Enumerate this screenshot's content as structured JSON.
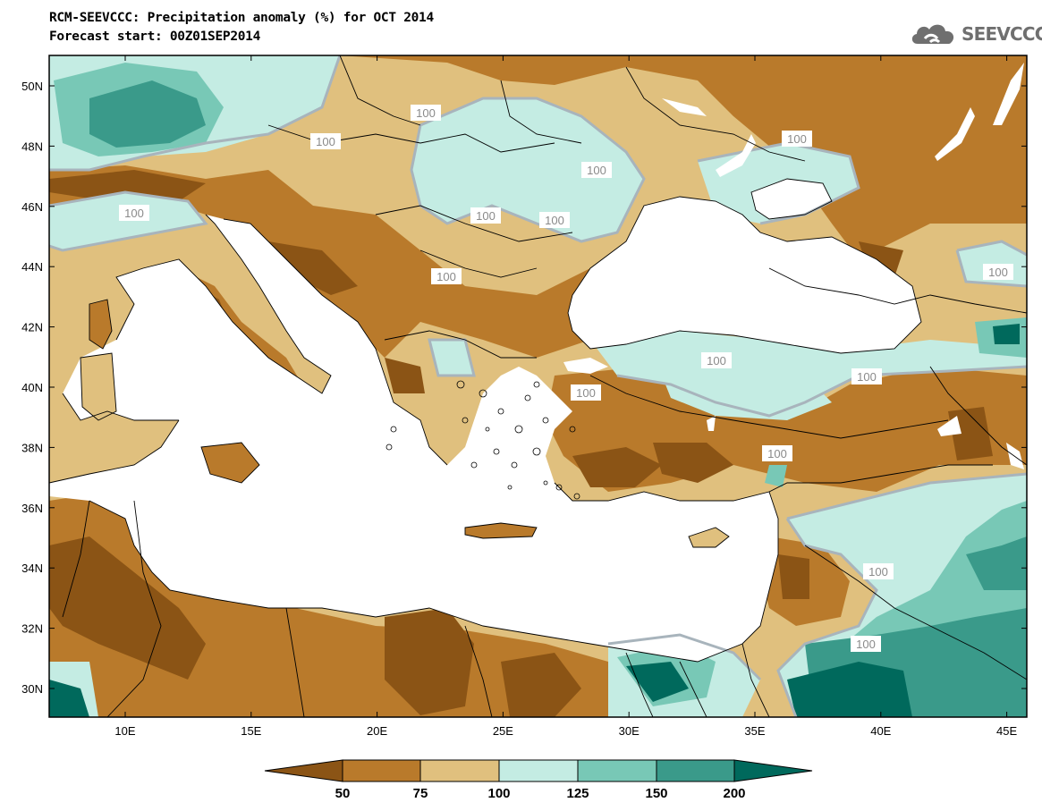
{
  "header": {
    "title": "RCM-SEEVCCC: Precipitation anomaly (%) for OCT 2014",
    "subtitle": "Forecast start: 00Z01SEP2014"
  },
  "logo": {
    "text": "SEEVCCC",
    "icon": "cloud-logo-icon"
  },
  "map": {
    "lon_ticks": [
      "10E",
      "15E",
      "20E",
      "25E",
      "30E",
      "35E",
      "40E",
      "45E"
    ],
    "lat_ticks": [
      "50N",
      "48N",
      "46N",
      "44N",
      "42N",
      "40N",
      "38N",
      "36N",
      "34N",
      "32N",
      "30N"
    ],
    "contour_label": "100",
    "contour_label_count": 17
  },
  "colorbar": {
    "labels": [
      "50",
      "75",
      "100",
      "125",
      "150",
      "200"
    ],
    "colors": [
      "#8b5415",
      "#b97a2b",
      "#e0c07e",
      "#c4ece3",
      "#78c8b6",
      "#3a9a8a",
      "#00695c"
    ]
  },
  "palette": {
    "sea": "#ffffff",
    "contour": "#a8b4bc",
    "border": "#000000"
  }
}
